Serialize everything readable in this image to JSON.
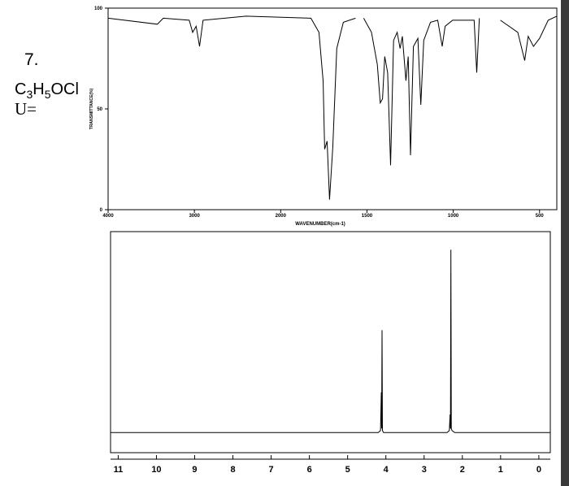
{
  "problem": {
    "number": "7.",
    "formula": [
      "C",
      "3",
      "H",
      "5",
      "OCl"
    ],
    "unsaturation": "U="
  },
  "chart_data": [
    {
      "type": "line",
      "x_label": "WAVENUMBER(cm-1)",
      "y_label": "TRANSMITTANCE(%)",
      "color": "#000000",
      "x": [
        4000,
        3430,
        3360,
        3060,
        3020,
        2980,
        2940,
        2900,
        2400,
        1825,
        1778,
        1754,
        1745,
        1731,
        1717,
        1698,
        1675,
        1637,
        1566,
        1545,
        1519,
        1474,
        1440,
        1423,
        1410,
        1397,
        1380,
        1363,
        1346,
        1325,
        1308,
        1295,
        1274,
        1261,
        1248,
        1231,
        1205,
        1188,
        1171,
        1132,
        1090,
        1064,
        1047,
        1004,
        879,
        864,
        849,
        780,
        727,
        626,
        586,
        566,
        535,
        500,
        450,
        400
      ],
      "values": [
        95,
        92,
        95,
        94,
        88,
        91,
        81,
        94,
        96,
        95,
        88,
        64,
        30,
        34,
        5,
        31,
        80,
        93,
        95,
        null,
        95,
        88,
        72,
        53,
        55,
        76,
        68,
        22,
        84,
        88,
        80,
        86,
        64,
        76,
        27,
        81,
        85,
        52,
        84,
        93,
        94,
        81,
        91,
        94,
        94,
        68,
        95,
        null,
        94,
        88,
        74,
        86,
        81,
        85,
        94,
        96
      ],
      "xlim": [
        4000,
        400
      ],
      "xticks": [
        4000,
        3000,
        2000,
        1500,
        1000,
        500
      ],
      "ylim": [
        0,
        100
      ],
      "yticks": [
        0,
        50,
        100
      ]
    },
    {
      "type": "line",
      "color": "#000000",
      "x": [
        11.2,
        4.2,
        4.14,
        4.12,
        4.11,
        4.1,
        4.09,
        4.06,
        2.4,
        2.34,
        2.32,
        2.31,
        2.3,
        2.29,
        2.27,
        2.2,
        -0.3
      ],
      "values": [
        0,
        0,
        1,
        20,
        2,
        51,
        1,
        0,
        0,
        1,
        9,
        2,
        91,
        2,
        1,
        0,
        0
      ],
      "xlim": [
        11.2,
        -0.3
      ],
      "xticks": [
        11,
        10,
        9,
        8,
        7,
        6,
        5,
        4,
        3,
        2,
        1,
        0
      ],
      "ylim": [
        -10,
        100
      ]
    }
  ]
}
